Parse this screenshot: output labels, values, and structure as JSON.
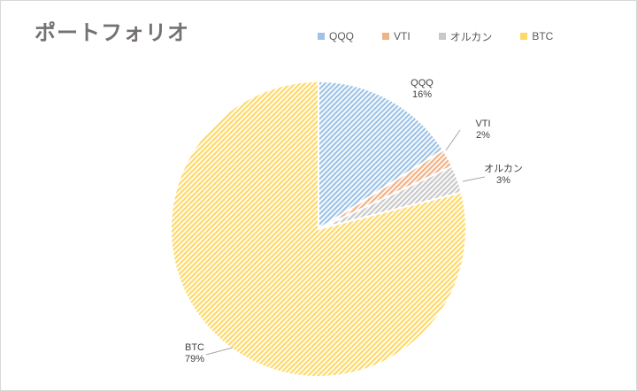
{
  "title": "ポートフォリオ",
  "chart_data": {
    "type": "pie",
    "title": "ポートフォリオ",
    "legend_position": "top-right",
    "slices": [
      {
        "label": "QQQ",
        "value": 16,
        "percent_label": "16%",
        "color": "#9dc3e6"
      },
      {
        "label": "VTI",
        "value": 2,
        "percent_label": "2%",
        "color": "#f4b183"
      },
      {
        "label": "オルカン",
        "value": 3,
        "percent_label": "3%",
        "color": "#c9c9c9"
      },
      {
        "label": "BTC",
        "value": 79,
        "percent_label": "79%",
        "color": "#ffd966"
      }
    ]
  }
}
